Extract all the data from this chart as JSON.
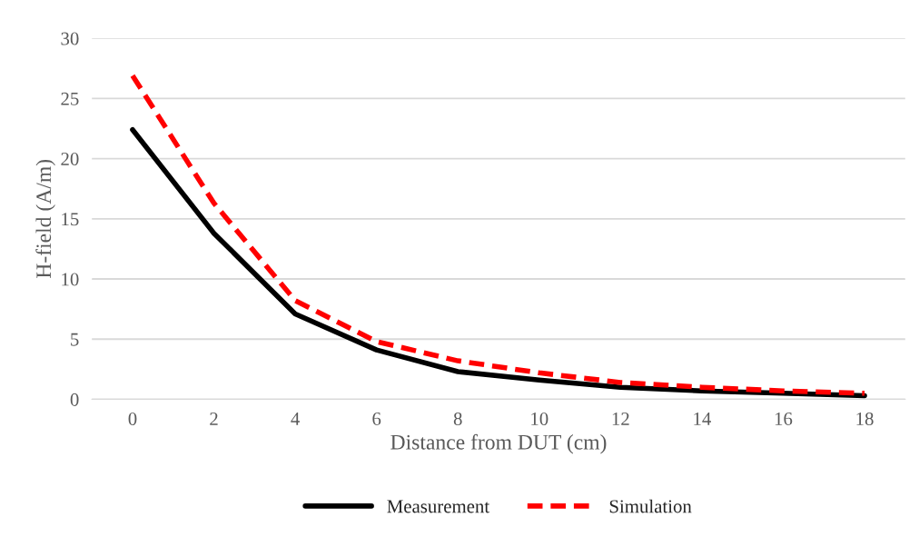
{
  "chart_data": {
    "type": "line",
    "xlabel": "Distance from DUT (cm)",
    "ylabel": "H-field (A/m)",
    "categories": [
      "0",
      "2",
      "4",
      "6",
      "8",
      "10",
      "12",
      "14",
      "16",
      "18"
    ],
    "series": [
      {
        "name": "Measurement",
        "color": "#000000",
        "line_style": "solid",
        "values": [
          22.4,
          13.8,
          7.1,
          4.1,
          2.3,
          1.6,
          1.0,
          0.7,
          0.5,
          0.3
        ]
      },
      {
        "name": "Simulation",
        "color": "#ff0000",
        "line_style": "dashed",
        "values": [
          26.9,
          16.3,
          8.2,
          4.8,
          3.2,
          2.2,
          1.4,
          1.0,
          0.7,
          0.5
        ]
      }
    ],
    "ylim": [
      0,
      30
    ],
    "yticks": [
      0,
      5,
      10,
      15,
      20,
      25,
      30
    ],
    "grid": "y",
    "legend": "bottom"
  }
}
